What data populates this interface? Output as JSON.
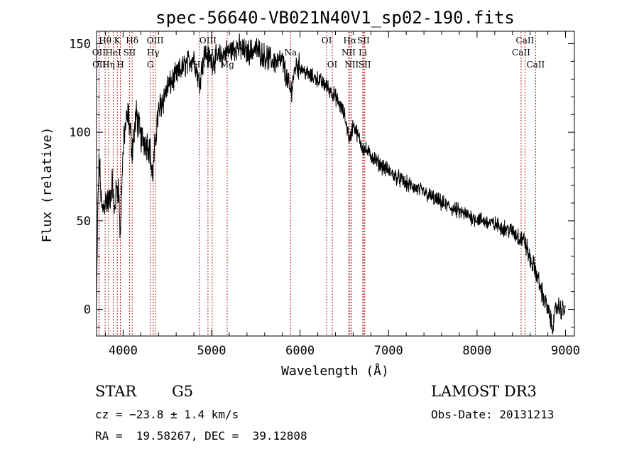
{
  "chart_data": {
    "type": "line",
    "title": "spec-56640-VB021N40V1_sp02-190.fits",
    "xlabel": "Wavelength (Å)",
    "ylabel": "Flux (relative)",
    "xlim": [
      3700,
      9100
    ],
    "ylim": [
      -15,
      157
    ],
    "xticks": [
      4000,
      5000,
      6000,
      7000,
      8000,
      9000
    ],
    "yticks": [
      0,
      50,
      100,
      150
    ],
    "spectrum_anchor_points": {
      "x": [
        3700,
        3705,
        3715,
        3730,
        3760,
        3800,
        3840,
        3880,
        3900,
        3930,
        3950,
        3968,
        3990,
        4020,
        4060,
        4102,
        4150,
        4200,
        4250,
        4300,
        4330,
        4340,
        4380,
        4420,
        4500,
        4600,
        4700,
        4800,
        4861,
        4920,
        5000,
        5100,
        5200,
        5300,
        5400,
        5500,
        5600,
        5700,
        5800,
        5893,
        5950,
        6000,
        6100,
        6200,
        6300,
        6400,
        6500,
        6563,
        6600,
        6700,
        6800,
        6900,
        7000,
        7200,
        7400,
        7600,
        7800,
        8000,
        8200,
        8400,
        8498,
        8542,
        8600,
        8662,
        8700,
        8750,
        8800,
        8850,
        8900,
        8950,
        9000
      ],
      "y": [
        -2,
        20,
        60,
        85,
        55,
        62,
        60,
        72,
        55,
        70,
        68,
        40,
        80,
        102,
        110,
        90,
        110,
        97,
        95,
        92,
        75,
        78,
        105,
        115,
        125,
        132,
        138,
        142,
        128,
        145,
        140,
        143,
        146,
        148,
        145,
        147,
        143,
        140,
        140,
        122,
        138,
        137,
        132,
        130,
        126,
        120,
        110,
        95,
        105,
        92,
        87,
        82,
        78,
        71,
        66,
        60,
        55,
        51,
        48,
        44,
        40,
        38,
        28,
        22,
        15,
        7,
        0,
        -10,
        2,
        0,
        0
      ]
    },
    "line_markers": [
      {
        "label": "Hθ",
        "x": 3797,
        "row": 1
      },
      {
        "label": "OII",
        "x": 3727,
        "row": 2
      },
      {
        "label": "OII",
        "x": 3729,
        "row": 3
      },
      {
        "label": "Hη",
        "x": 3835,
        "row": 3
      },
      {
        "label": "K",
        "x": 3934,
        "row": 1
      },
      {
        "label": "HeI",
        "x": 3889,
        "row": 2
      },
      {
        "label": "H",
        "x": 3969,
        "row": 3
      },
      {
        "label": "SII",
        "x": 4072,
        "row": 2
      },
      {
        "label": "Hδ",
        "x": 4102,
        "row": 1
      },
      {
        "label": "OIII",
        "x": 4363,
        "row": 1
      },
      {
        "label": "Hγ",
        "x": 4340,
        "row": 2
      },
      {
        "label": "G",
        "x": 4306,
        "row": 3
      },
      {
        "label": "OIII",
        "x": 4959,
        "row": 1
      },
      {
        "label": "OIII",
        "x": 5007,
        "row": 2
      },
      {
        "label": "Hβ",
        "x": 4861,
        "row": 3
      },
      {
        "label": "Mg",
        "x": 5176,
        "row": 3
      },
      {
        "label": "Na",
        "x": 5893,
        "row": 2
      },
      {
        "label": "OI",
        "x": 6300,
        "row": 1
      },
      {
        "label": "OI",
        "x": 6364,
        "row": 3
      },
      {
        "label": "Hα",
        "x": 6563,
        "row": 1
      },
      {
        "label": "SII",
        "x": 6716,
        "row": 1
      },
      {
        "label": "NII",
        "x": 6548,
        "row": 2
      },
      {
        "label": "Li",
        "x": 6708,
        "row": 2
      },
      {
        "label": "NII",
        "x": 6583,
        "row": 3
      },
      {
        "label": "SII",
        "x": 6731,
        "row": 3
      },
      {
        "label": "CaII",
        "x": 8542,
        "row": 1
      },
      {
        "label": "CaII",
        "x": 8498,
        "row": 2
      },
      {
        "label": "CaII",
        "x": 8662,
        "row": 3
      }
    ]
  },
  "info": {
    "class_label": "STAR",
    "subclass": "G5",
    "survey": "LAMOST DR3",
    "cz": "cz = −23.8 ± 1.4 km/s",
    "obs_date": "Obs-Date: 20131213",
    "coords": "RA =  19.58267, DEC =  39.12808"
  },
  "colors": {
    "axis": "#000000",
    "spectrum": "#000000",
    "marker_line": "#b22222"
  }
}
